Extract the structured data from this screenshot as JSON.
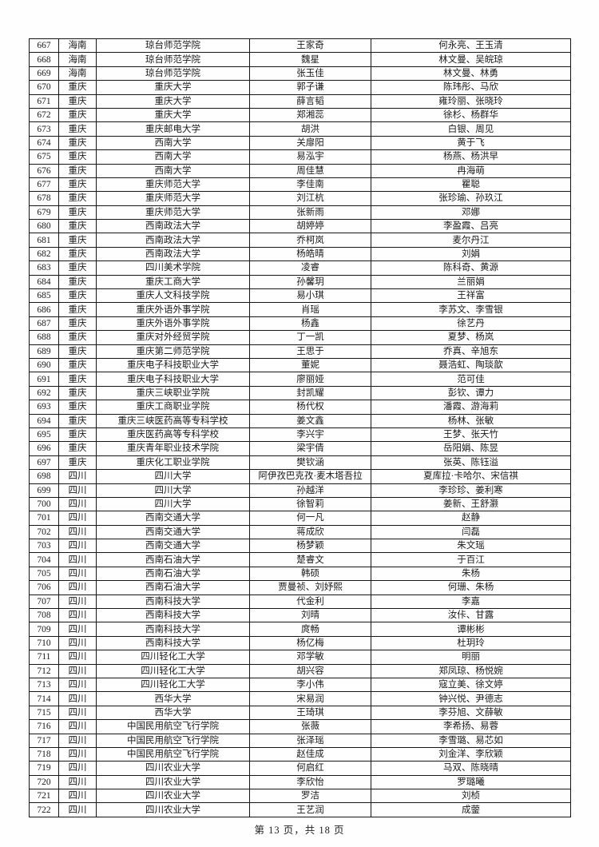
{
  "table": {
    "rows": [
      [
        "667",
        "海南",
        "琼台师范学院",
        "王家奇",
        "何永亮、王玉清"
      ],
      [
        "668",
        "海南",
        "琼台师范学院",
        "魏星",
        "林文曼、吴皖琼"
      ],
      [
        "669",
        "海南",
        "琼台师范学院",
        "张玉佳",
        "林文曼、林勇"
      ],
      [
        "670",
        "重庆",
        "重庆大学",
        "郭子谦",
        "陈玮彤、马欣"
      ],
      [
        "671",
        "重庆",
        "重庆大学",
        "薛言韬",
        "雍玲丽、张晓玲"
      ],
      [
        "672",
        "重庆",
        "重庆大学",
        "郑湘蕊",
        "徐杉、杨群华"
      ],
      [
        "673",
        "重庆",
        "重庆邮电大学",
        "胡洪",
        "白银、周见"
      ],
      [
        "674",
        "重庆",
        "西南大学",
        "关扉阳",
        "黄于飞"
      ],
      [
        "675",
        "重庆",
        "西南大学",
        "易泓宇",
        "杨燕、杨洪早"
      ],
      [
        "676",
        "重庆",
        "西南大学",
        "周佳慧",
        "冉海萌"
      ],
      [
        "677",
        "重庆",
        "重庆师范大学",
        "李佳南",
        "瞿聪"
      ],
      [
        "678",
        "重庆",
        "重庆师范大学",
        "刘江杭",
        "张珍瑜、孙玖江"
      ],
      [
        "679",
        "重庆",
        "重庆师范大学",
        "张新雨",
        "邓娜"
      ],
      [
        "680",
        "重庆",
        "西南政法大学",
        "胡婷婷",
        "李盈霞、吕亮"
      ],
      [
        "681",
        "重庆",
        "西南政法大学",
        "乔柯岚",
        "麦尔丹江"
      ],
      [
        "682",
        "重庆",
        "西南政法大学",
        "杨皓晴",
        "刘娟"
      ],
      [
        "683",
        "重庆",
        "四川美术学院",
        "凌睿",
        "陈科奇、黄源"
      ],
      [
        "684",
        "重庆",
        "重庆工商大学",
        "孙馨玥",
        "兰丽娟"
      ],
      [
        "685",
        "重庆",
        "重庆人文科技学院",
        "易小琪",
        "王祥富"
      ],
      [
        "686",
        "重庆",
        "重庆外语外事学院",
        "肖瑶",
        "李苏文、李雪银"
      ],
      [
        "687",
        "重庆",
        "重庆外语外事学院",
        "杨鑫",
        "徐艺丹"
      ],
      [
        "688",
        "重庆",
        "重庆对外经贸学院",
        "丁一凯",
        "夏梦、杨岚"
      ],
      [
        "689",
        "重庆",
        "重庆第二师范学院",
        "王思于",
        "乔真、辛旭东"
      ],
      [
        "690",
        "重庆",
        "重庆电子科技职业大学",
        "董妮",
        "聂浩虹、陶琰歆"
      ],
      [
        "691",
        "重庆",
        "重庆电子科技职业大学",
        "廖丽娅",
        "范可佳"
      ],
      [
        "692",
        "重庆",
        "重庆三峡职业学院",
        "封凯耀",
        "彭钦、谭力"
      ],
      [
        "693",
        "重庆",
        "重庆工商职业学院",
        "杨代权",
        "潘霞、游海莉"
      ],
      [
        "694",
        "重庆",
        "重庆三峡医药高等专科学校",
        "姜文鑫",
        "杨林、张敏"
      ],
      [
        "695",
        "重庆",
        "重庆医药高等专科学校",
        "李兴宇",
        "王梦、张天竹"
      ],
      [
        "696",
        "重庆",
        "重庆青年职业技术学院",
        "梁宇倩",
        "岳阳娟、陈昱"
      ],
      [
        "697",
        "重庆",
        "重庆化工职业学院",
        "樊钦涵",
        "张英、陈钰溢"
      ],
      [
        "698",
        "四川",
        "四川大学",
        "阿伊孜巴克孜·麦木塔吾拉",
        "夏库拉·卡哈尔、宋信祺"
      ],
      [
        "699",
        "四川",
        "四川大学",
        "孙越洋",
        "李珍珍、姜利寒"
      ],
      [
        "700",
        "四川",
        "四川大学",
        "徐智莉",
        "姜新、王舒灏"
      ],
      [
        "701",
        "四川",
        "西南交通大学",
        "何一凡",
        "赵静"
      ],
      [
        "702",
        "四川",
        "西南交通大学",
        "蒋成欣",
        "闫磊"
      ],
      [
        "703",
        "四川",
        "西南交通大学",
        "杨梦颖",
        "朱文瑶"
      ],
      [
        "704",
        "四川",
        "西南石油大学",
        "楚睿文",
        "于百江"
      ],
      [
        "705",
        "四川",
        "西南石油大学",
        "韩硕",
        "朱杨"
      ],
      [
        "706",
        "四川",
        "西南石油大学",
        "贾曼祯、刘妤熙",
        "何珊、朱杨"
      ],
      [
        "707",
        "四川",
        "西南科技大学",
        "代金利",
        "李嘉"
      ],
      [
        "708",
        "四川",
        "西南科技大学",
        "刘晴",
        "汝佧、甘露"
      ],
      [
        "709",
        "四川",
        "西南科技大学",
        "庹畅",
        "谭彬彬"
      ],
      [
        "710",
        "四川",
        "西南科技大学",
        "杨亿梅",
        "杜玥玲"
      ],
      [
        "711",
        "四川",
        "四川轻化工大学",
        "邓学敏",
        "明丽"
      ],
      [
        "712",
        "四川",
        "四川轻化工大学",
        "胡兴容",
        "郑凤琼、杨悦婉"
      ],
      [
        "713",
        "四川",
        "四川轻化工大学",
        "李小伟",
        "寇立美、徐文婷"
      ],
      [
        "714",
        "四川",
        "西华大学",
        "宋易润",
        "钟兴悦、尹德志"
      ],
      [
        "715",
        "四川",
        "西华大学",
        "王琦琪",
        "李芬旭、文薛敏"
      ],
      [
        "716",
        "四川",
        "中国民用航空飞行学院",
        "张薇",
        "李希扬、易蓉"
      ],
      [
        "717",
        "四川",
        "中国民用航空飞行学院",
        "张泽瑶",
        "李雪璐、易芯如"
      ],
      [
        "718",
        "四川",
        "中国民用航空飞行学院",
        "赵佳成",
        "刘金洋、李欣颖"
      ],
      [
        "719",
        "四川",
        "四川农业大学",
        "何启红",
        "马双、陈晓晴"
      ],
      [
        "720",
        "四川",
        "四川农业大学",
        "李欣怡",
        "罗璐曦"
      ],
      [
        "721",
        "四川",
        "四川农业大学",
        "罗洁",
        "刘桢"
      ],
      [
        "722",
        "四川",
        "四川农业大学",
        "王艺润",
        "成蓥"
      ]
    ]
  },
  "footer": {
    "text": "第 13 页，共 18 页"
  }
}
